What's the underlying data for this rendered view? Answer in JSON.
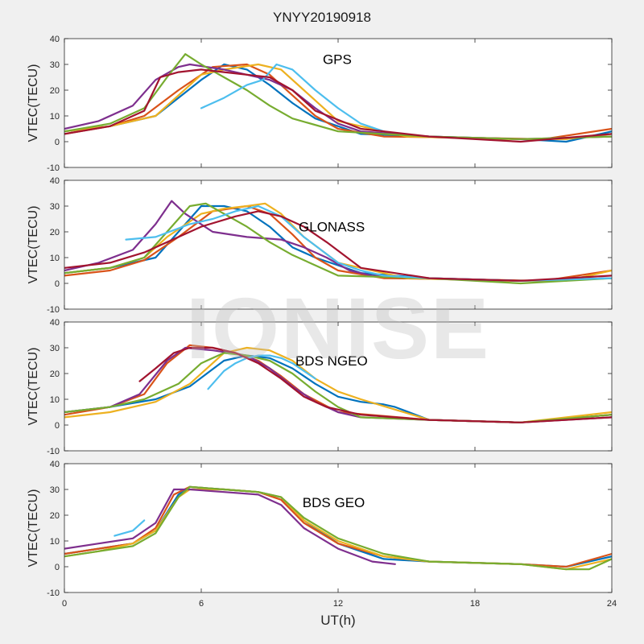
{
  "figure": {
    "title": "YNYY20190918",
    "watermark": "IONISE",
    "xlabel": "UT(h)",
    "colors": [
      "#0072BD",
      "#D95319",
      "#EDB120",
      "#7E2F8E",
      "#77AC30",
      "#4DBEEE",
      "#A2142F"
    ]
  },
  "chart_data": [
    {
      "type": "line",
      "panel_label": "GPS",
      "ylabel": "VTEC(TECU)",
      "xlim": [
        0,
        24
      ],
      "ylim": [
        -10,
        40
      ],
      "xticks": [
        0,
        6,
        12,
        18,
        24
      ],
      "yticks": [
        -10,
        0,
        10,
        20,
        30,
        40
      ],
      "grid": false,
      "series": [
        {
          "x": [
            0,
            2,
            4,
            6,
            7,
            8,
            9,
            10,
            11,
            13,
            16,
            20,
            22,
            24
          ],
          "y": [
            4,
            6,
            10,
            24,
            30,
            28,
            22,
            15,
            9,
            3,
            2,
            1,
            0,
            4
          ]
        },
        {
          "x": [
            0,
            2,
            3.5,
            5,
            6.5,
            8,
            9,
            10,
            11,
            12,
            14,
            18,
            21,
            24
          ],
          "y": [
            3,
            6,
            10,
            20,
            29,
            30,
            26,
            18,
            10,
            5,
            2,
            1.5,
            1,
            5
          ]
        },
        {
          "x": [
            0,
            2,
            4,
            5,
            6,
            7,
            8.5,
            9.5,
            10.5,
            12,
            15,
            19,
            22,
            24
          ],
          "y": [
            4,
            6,
            10,
            18,
            26,
            28,
            30,
            28,
            20,
            8,
            2,
            1,
            1,
            3
          ]
        },
        {
          "x": [
            0,
            1.5,
            3,
            4,
            5,
            5.5,
            7,
            8,
            9,
            10,
            11,
            12,
            13,
            16,
            20,
            24
          ],
          "y": [
            5,
            8,
            14,
            24,
            29,
            30,
            28,
            26,
            24,
            20,
            13,
            7,
            4,
            2,
            1,
            2
          ]
        },
        {
          "x": [
            0,
            2,
            3.5,
            4.5,
            5.3,
            6,
            7,
            8,
            9,
            10,
            12,
            16,
            20,
            24
          ],
          "y": [
            4,
            7,
            13,
            25,
            34,
            30,
            25,
            20,
            14,
            9,
            4,
            2,
            1,
            2
          ]
        },
        {
          "x": [
            6,
            7,
            8,
            8.7,
            9.3,
            10,
            11,
            12,
            13,
            14
          ],
          "y": [
            13,
            17,
            22,
            24,
            30,
            28,
            20,
            13,
            7,
            4
          ]
        },
        {
          "x": [
            0,
            2,
            3.5,
            4.2,
            5,
            6,
            7,
            8,
            9,
            10,
            11,
            13,
            16,
            20,
            24
          ],
          "y": [
            3,
            6,
            12,
            25,
            27,
            28,
            27,
            26,
            25,
            20,
            12,
            5,
            2,
            0,
            3
          ]
        }
      ]
    },
    {
      "type": "line",
      "panel_label": "GLONASS",
      "ylabel": "VTEC(TECU)",
      "xlim": [
        0,
        24
      ],
      "ylim": [
        -10,
        40
      ],
      "xticks": [
        0,
        6,
        12,
        18,
        24
      ],
      "yticks": [
        -10,
        0,
        10,
        20,
        30,
        40
      ],
      "grid": false,
      "series": [
        {
          "x": [
            0,
            2,
            4,
            5,
            6,
            7,
            8,
            9,
            10,
            11,
            13,
            16,
            20,
            24
          ],
          "y": [
            4,
            6,
            10,
            20,
            30,
            30,
            28,
            22,
            14,
            10,
            4,
            2,
            1,
            2
          ]
        },
        {
          "x": [
            0,
            2,
            3.5,
            5,
            6.5,
            8,
            9,
            10,
            11,
            12,
            14,
            18,
            21,
            24
          ],
          "y": [
            3,
            5,
            9,
            18,
            28,
            30,
            27,
            19,
            10,
            5,
            2,
            1.5,
            1,
            5
          ]
        },
        {
          "x": [
            0,
            2,
            3.5,
            4.5,
            6,
            7,
            8,
            8.8,
            9.5,
            10.5,
            12,
            15,
            19,
            22,
            24
          ],
          "y": [
            4,
            6,
            10,
            18,
            27,
            29,
            30,
            31,
            27,
            18,
            8,
            2,
            1,
            1,
            5
          ]
        },
        {
          "x": [
            0,
            1.5,
            3,
            4,
            4.7,
            5.3,
            6.5,
            8,
            9.5,
            10.5,
            11.5,
            12.5,
            13.5,
            16,
            20,
            24
          ],
          "y": [
            5,
            8,
            13,
            23,
            32,
            27,
            20,
            18,
            17,
            14,
            10,
            5,
            3,
            2,
            1,
            2
          ]
        },
        {
          "x": [
            0,
            2,
            3.5,
            4.5,
            5.5,
            6.2,
            7,
            8,
            9,
            10,
            11,
            12,
            16,
            20,
            24
          ],
          "y": [
            4,
            6,
            10,
            20,
            30,
            31,
            27,
            22,
            16,
            11,
            7,
            3,
            2,
            0,
            2
          ]
        },
        {
          "x": [
            2.7,
            4,
            5.5,
            6.5,
            7.5,
            8.5,
            9.5,
            10.5,
            12,
            13,
            14,
            16,
            20,
            24
          ],
          "y": [
            17,
            18,
            23,
            25,
            28,
            30,
            26,
            18,
            8,
            5,
            3,
            2,
            1,
            2
          ]
        },
        {
          "x": [
            0,
            2,
            3.5,
            5,
            6,
            7.5,
            8.5,
            9.5,
            10.5,
            11.5,
            13,
            16,
            20,
            24
          ],
          "y": [
            6,
            8,
            12,
            18,
            22,
            26,
            28,
            26,
            22,
            16,
            6,
            2,
            1,
            3
          ]
        }
      ]
    },
    {
      "type": "line",
      "panel_label": "BDS NGEO",
      "ylabel": "VTEC(TECU)",
      "xlim": [
        0,
        24
      ],
      "ylim": [
        -10,
        40
      ],
      "xticks": [
        0,
        6,
        12,
        18,
        24
      ],
      "yticks": [
        -10,
        0,
        10,
        20,
        30,
        40
      ],
      "grid": false,
      "series": [
        {
          "x": [
            0,
            2,
            4,
            5.5,
            7,
            8,
            9,
            10,
            11,
            12,
            13,
            14,
            14.5,
            16,
            20,
            24
          ],
          "y": [
            5,
            7,
            10,
            15,
            25,
            27,
            26,
            22,
            16,
            11,
            9,
            8,
            7,
            2,
            1,
            4
          ]
        },
        {
          "x": [
            0,
            2,
            3.5,
            4.5,
            5.5,
            6.5,
            7.5,
            8.5,
            9.5,
            10.5,
            12,
            16,
            20,
            24
          ],
          "y": [
            4,
            7,
            12,
            24,
            31,
            30,
            28,
            25,
            19,
            12,
            5,
            2,
            1,
            4
          ]
        },
        {
          "x": [
            0,
            2,
            4,
            5.5,
            7,
            8,
            9,
            10,
            11,
            12,
            13,
            16,
            20,
            24
          ],
          "y": [
            3,
            5,
            9,
            16,
            28,
            30,
            29,
            25,
            18,
            13,
            10,
            2,
            1,
            5
          ]
        },
        {
          "x": [
            0,
            2,
            3.3,
            4.5,
            5.3,
            6.5,
            8,
            9,
            10,
            11,
            12,
            13,
            16,
            20,
            24
          ],
          "y": [
            5,
            7,
            12,
            25,
            30,
            29,
            27,
            22,
            15,
            9,
            5,
            3,
            2,
            1,
            3
          ]
        },
        {
          "x": [
            0,
            2,
            3.5,
            5,
            6,
            7,
            8,
            9,
            10,
            11,
            12,
            13,
            16,
            20,
            24
          ],
          "y": [
            5,
            7,
            10,
            16,
            24,
            28,
            27,
            25,
            20,
            13,
            7,
            3,
            2,
            1,
            4
          ]
        },
        {
          "x": [
            6.3,
            7,
            7.5,
            8,
            8.5,
            9,
            9.5,
            10,
            10.5,
            11
          ],
          "y": [
            14,
            21,
            24,
            26,
            27,
            27,
            26,
            24,
            21,
            18
          ]
        },
        {
          "x": [
            3.3,
            4,
            4.8,
            5.5,
            6.5,
            7.5,
            8.5,
            9.5,
            10.5,
            11.5,
            13,
            16,
            20,
            24
          ],
          "y": [
            17,
            22,
            28,
            30,
            30,
            28,
            24,
            18,
            11,
            7,
            4,
            2,
            1,
            3
          ]
        }
      ]
    },
    {
      "type": "line",
      "panel_label": "BDS GEO",
      "ylabel": "VTEC(TECU)",
      "xlim": [
        0,
        24
      ],
      "ylim": [
        -10,
        40
      ],
      "xticks": [
        0,
        6,
        12,
        18,
        24
      ],
      "yticks": [
        -10,
        0,
        10,
        20,
        30,
        40
      ],
      "grid": false,
      "series": [
        {
          "x": [
            0,
            1.5,
            3,
            4,
            5,
            5.5,
            7,
            8.5,
            9.5,
            10.5,
            12,
            14,
            16,
            20,
            22,
            24
          ],
          "y": [
            5,
            7,
            9,
            14,
            28,
            31,
            30,
            29,
            27,
            18,
            9,
            3,
            2,
            1,
            0,
            4
          ]
        },
        {
          "x": [
            0,
            1.5,
            3,
            4,
            4.8,
            5.5,
            7,
            8.5,
            9.5,
            10.5,
            12,
            14,
            16,
            20,
            22,
            24
          ],
          "y": [
            5,
            7,
            9,
            15,
            28,
            31,
            30,
            29,
            26,
            17,
            9,
            4,
            2,
            1,
            0,
            5
          ]
        },
        {
          "x": [
            0,
            1.5,
            3,
            4,
            5,
            5.5,
            7,
            8.5,
            9.5,
            10.5,
            12,
            14,
            16,
            20,
            22,
            24
          ],
          "y": [
            4,
            6,
            9,
            14,
            27,
            30,
            30,
            29,
            27,
            18,
            10,
            4,
            2,
            1,
            -1,
            3
          ]
        },
        {
          "x": [
            0,
            1.5,
            3,
            4,
            4.8,
            5.5,
            7,
            8.5,
            9.5,
            10.5,
            12,
            13.5,
            14.5
          ],
          "y": [
            7,
            9,
            11,
            17,
            30,
            30,
            29,
            28,
            24,
            15,
            7,
            2,
            1
          ]
        },
        {
          "x": [
            0,
            1.5,
            3,
            4,
            5,
            5.5,
            7,
            8.5,
            9.5,
            10.5,
            12,
            14,
            16,
            20,
            22,
            23,
            24
          ],
          "y": [
            4,
            6,
            8,
            13,
            27,
            31,
            30,
            29,
            27,
            19,
            11,
            5,
            2,
            1,
            -1,
            -1,
            3
          ]
        },
        {
          "x": [
            2.2,
            3,
            3.5
          ],
          "y": [
            12,
            14,
            18
          ]
        }
      ]
    }
  ]
}
